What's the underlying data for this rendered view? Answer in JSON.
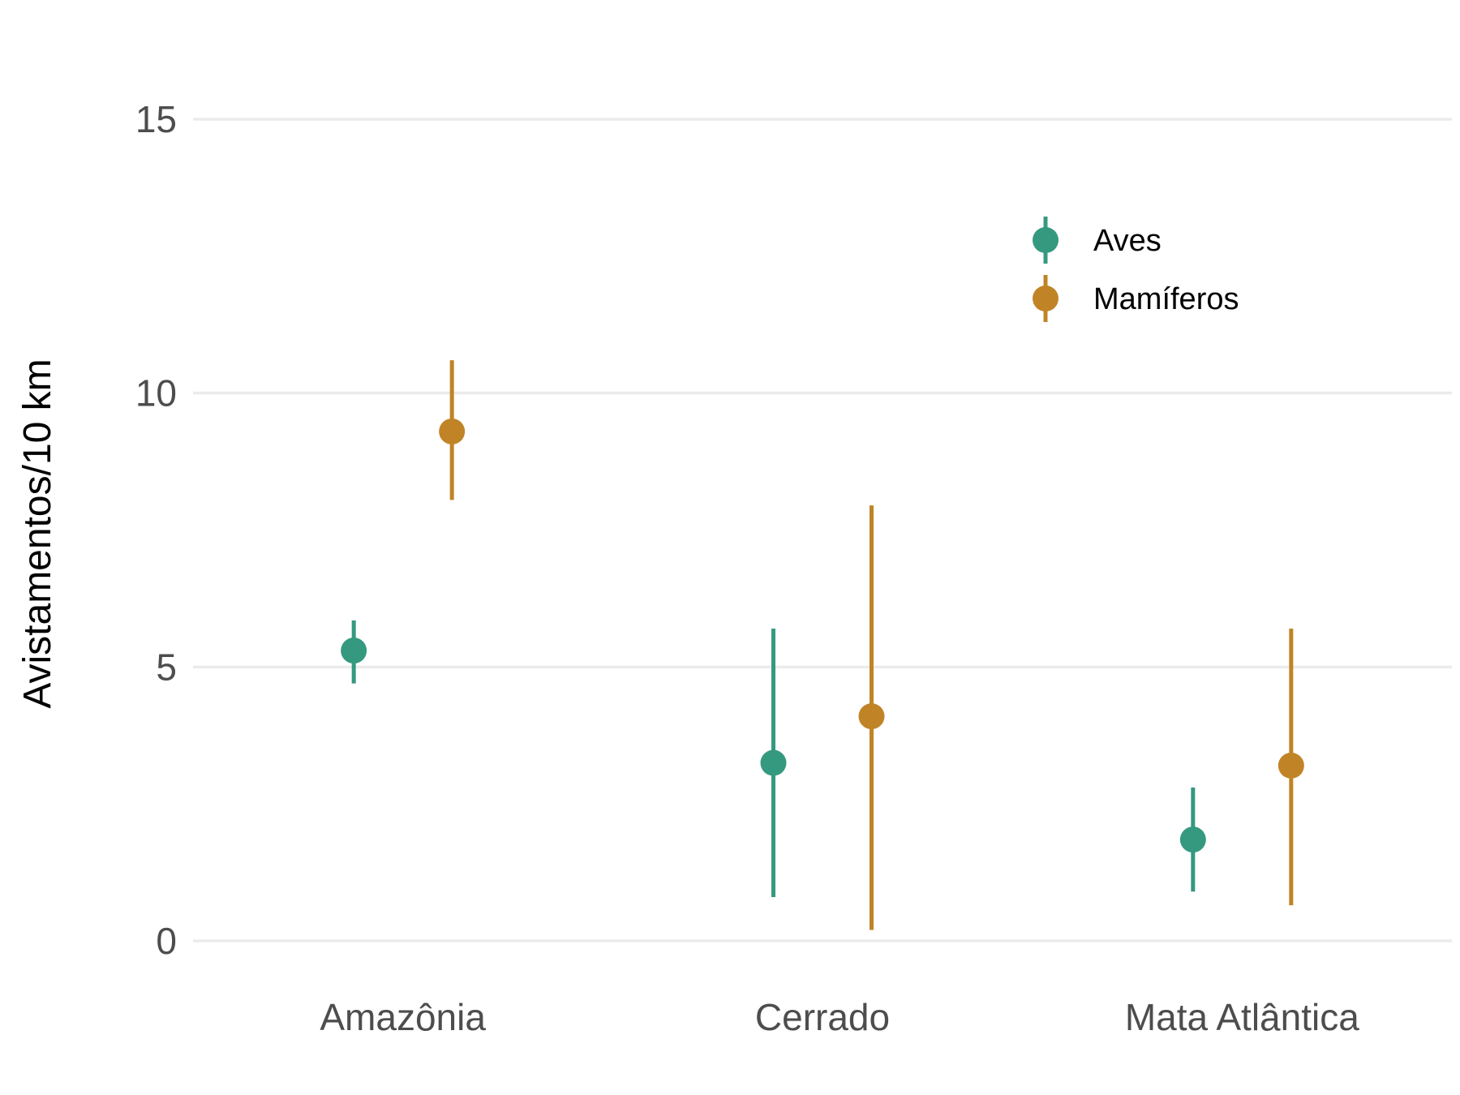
{
  "chart_data": {
    "type": "pointrange",
    "title": "",
    "xlabel": "",
    "ylabel": "Avistamentos/10 km",
    "categories": [
      "Amazônia",
      "Cerrado",
      "Mata Atlântica"
    ],
    "ylim": [
      -0.5,
      16
    ],
    "yticks": [
      0,
      5,
      10,
      15
    ],
    "grid": true,
    "legend_position": "top-right",
    "series": [
      {
        "name": "Aves",
        "color": "#35997f",
        "values": [
          5.3,
          3.25,
          1.85
        ],
        "lower": [
          4.7,
          0.8,
          0.9
        ],
        "upper": [
          5.85,
          5.7,
          2.8
        ]
      },
      {
        "name": "Mamíferos",
        "color": "#c08426",
        "values": [
          9.3,
          4.1,
          3.2
        ],
        "lower": [
          8.05,
          0.2,
          0.65
        ],
        "upper": [
          10.6,
          7.95,
          5.7
        ]
      }
    ]
  }
}
